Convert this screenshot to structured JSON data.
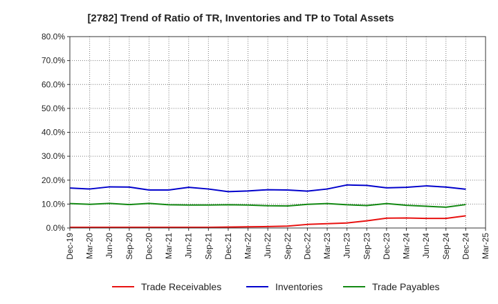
{
  "chart_data": {
    "type": "line",
    "title": "[2782]  Trend of Ratio of TR, Inventories and TP to Total Assets",
    "xlabel": "",
    "ylabel": "",
    "ylim": [
      0,
      80
    ],
    "y_ticks": [
      "0.0%",
      "10.0%",
      "20.0%",
      "30.0%",
      "40.0%",
      "50.0%",
      "60.0%",
      "70.0%",
      "80.0%"
    ],
    "x_tick_labels": [
      "Dec-19",
      "Mar-20",
      "Jun-20",
      "Sep-20",
      "Dec-20",
      "Mar-21",
      "Jun-21",
      "Sep-21",
      "Dec-21",
      "Mar-22",
      "Jun-22",
      "Sep-22",
      "Dec-22",
      "Mar-23",
      "Jun-23",
      "Sep-23",
      "Dec-23",
      "Mar-24",
      "Jun-24",
      "Sep-24",
      "Dec-24",
      "Mar-25"
    ],
    "x": [
      "Dec-19",
      "Mar-20",
      "Jun-20",
      "Sep-20",
      "Dec-20",
      "Mar-21",
      "Jun-21",
      "Sep-21",
      "Dec-21",
      "Mar-22",
      "Jun-22",
      "Sep-22",
      "Dec-22",
      "Mar-23",
      "Jun-23",
      "Sep-23",
      "Dec-23",
      "Mar-24",
      "Jun-24",
      "Sep-24",
      "Dec-24"
    ],
    "grid": true,
    "legend_position": "bottom",
    "series": [
      {
        "name": "Trade Receivables",
        "color": "#e8100f",
        "values": [
          0.3,
          0.3,
          0.3,
          0.3,
          0.3,
          0.3,
          0.3,
          0.3,
          0.4,
          0.5,
          0.6,
          0.8,
          1.5,
          1.8,
          2.1,
          3.0,
          4.1,
          4.2,
          4.0,
          4.0,
          5.1
        ]
      },
      {
        "name": "Inventories",
        "color": "#0000cc",
        "values": [
          16.7,
          16.3,
          17.2,
          17.1,
          15.9,
          15.9,
          17.0,
          16.3,
          15.2,
          15.5,
          16.0,
          15.9,
          15.4,
          16.3,
          18.0,
          17.8,
          16.8,
          17.0,
          17.6,
          17.1,
          16.2
        ]
      },
      {
        "name": "Trade Payables",
        "color": "#118811",
        "values": [
          10.2,
          9.9,
          10.3,
          9.8,
          10.3,
          9.7,
          9.6,
          9.6,
          9.7,
          9.6,
          9.3,
          9.2,
          9.9,
          10.2,
          9.7,
          9.4,
          10.2,
          9.5,
          9.1,
          8.7,
          9.8
        ]
      }
    ]
  }
}
